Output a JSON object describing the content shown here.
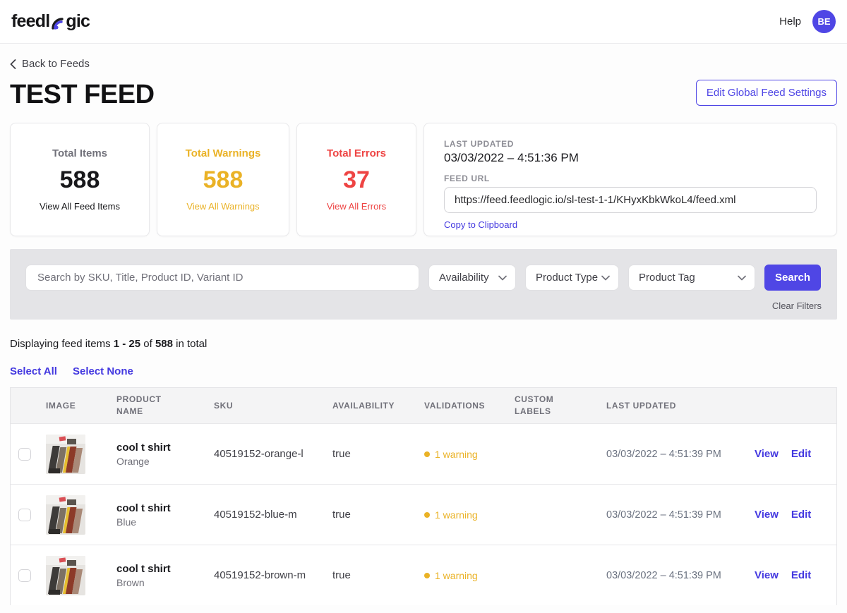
{
  "topbar": {
    "logo_prefix": "feedl",
    "logo_suffix": "gic",
    "help": "Help",
    "avatar_initials": "BE"
  },
  "breadcrumb": {
    "back_label": "Back to Feeds"
  },
  "page": {
    "title": "TEST FEED",
    "edit_settings_label": "Edit Global Feed Settings"
  },
  "stats": {
    "cards": [
      {
        "label": "Total Items",
        "value": "588",
        "link": "View All Feed Items"
      },
      {
        "label": "Total Warnings",
        "value": "588",
        "link": "View All Warnings"
      },
      {
        "label": "Total Errors",
        "value": "37",
        "link": "View All Errors"
      }
    ],
    "last_updated_label": "LAST UPDATED",
    "last_updated_value": "03/03/2022 – 4:51:36 PM",
    "feed_url_label": "FEED URL",
    "feed_url": "https://feed.feedlogic.io/sl-test-1-1/KHyxKbkWkoL4/feed.xml",
    "copy_label": "Copy to Clipboard"
  },
  "filters": {
    "search_placeholder": "Search by SKU, Title, Product ID, Variant ID",
    "dropdowns": [
      "Availability",
      "Product Type",
      "Product Tag"
    ],
    "search_button": "Search",
    "clear_label": "Clear Filters"
  },
  "results": {
    "summary_prefix": "Displaying feed items ",
    "range": "1 - 25",
    "of_text": " of ",
    "total": "588",
    "suffix": " in total",
    "select_all": "Select All",
    "select_none": "Select None"
  },
  "table": {
    "headers": [
      "IMAGE",
      "PRODUCT NAME",
      "SKU",
      "AVAILABILITY",
      "VALIDATIONS",
      "CUSTOM LABELS",
      "LAST UPDATED"
    ],
    "rows": [
      {
        "name": "cool t shirt",
        "variant": "Orange",
        "sku": "40519152-orange-l",
        "availability": "true",
        "validation": "1 warning",
        "custom_labels": "",
        "last_updated": "03/03/2022 – 4:51:39 PM",
        "view": "View",
        "edit": "Edit"
      },
      {
        "name": "cool t shirt",
        "variant": "Blue",
        "sku": "40519152-blue-m",
        "availability": "true",
        "validation": "1 warning",
        "custom_labels": "",
        "last_updated": "03/03/2022 – 4:51:39 PM",
        "view": "View",
        "edit": "Edit"
      },
      {
        "name": "cool t shirt",
        "variant": "Brown",
        "sku": "40519152-brown-m",
        "availability": "true",
        "validation": "1 warning",
        "custom_labels": "",
        "last_updated": "03/03/2022 – 4:51:39 PM",
        "view": "View",
        "edit": "Edit"
      }
    ]
  },
  "colors": {
    "accent": "#4f46e5",
    "link": "#4338e0",
    "warning": "#eab226",
    "error": "#ee4443"
  }
}
